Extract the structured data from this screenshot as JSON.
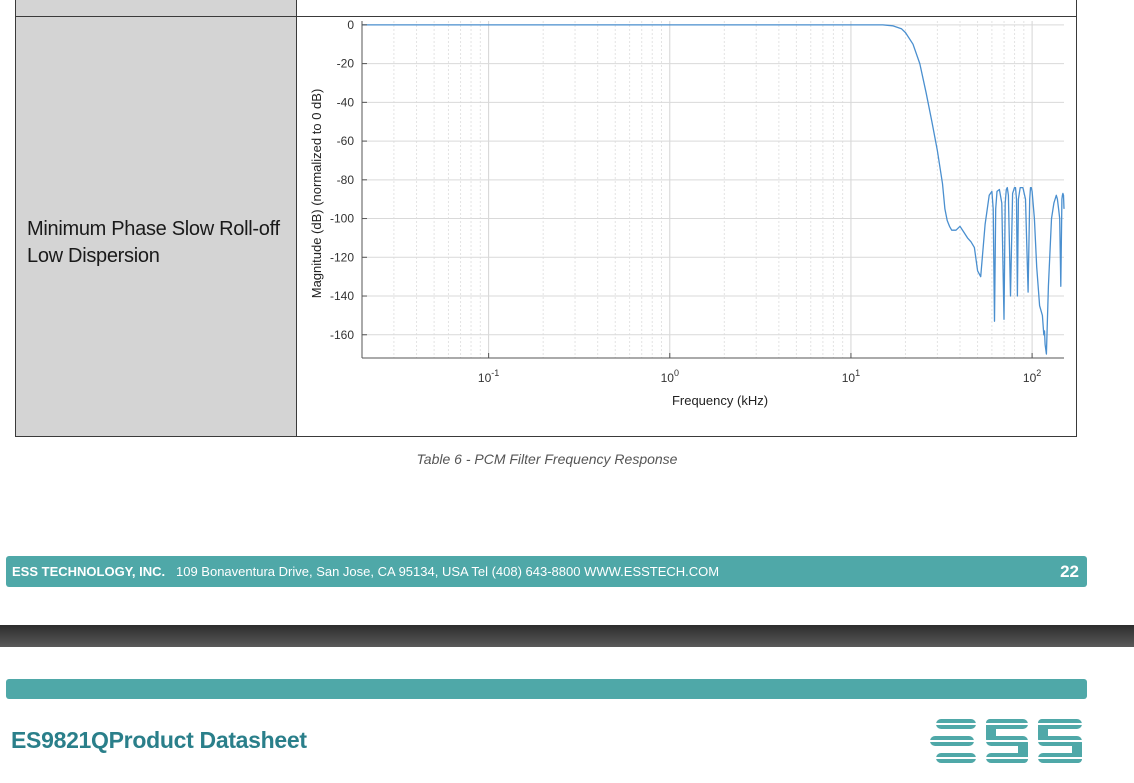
{
  "table": {
    "row_label_line1": "Minimum Phase Slow Roll-off",
    "row_label_line2": "Low Dispersion"
  },
  "chart_data": {
    "type": "line",
    "xlabel": "Frequency (kHz)",
    "ylabel": "Magnitude (dB) (normalized to 0 dB)",
    "x_scale": "log",
    "xlim": [
      0.02,
      150
    ],
    "ylim": [
      -172,
      2
    ],
    "x_ticks": [
      0.1,
      1,
      10,
      100
    ],
    "x_tick_labels": [
      {
        "base": "10",
        "exp": "-1"
      },
      {
        "base": "10",
        "exp": "0"
      },
      {
        "base": "10",
        "exp": "1"
      },
      {
        "base": "10",
        "exp": "2"
      }
    ],
    "y_ticks": [
      0,
      -20,
      -40,
      -60,
      -80,
      -100,
      -120,
      -140,
      -160
    ],
    "y_tick_labels": [
      "0",
      "-20",
      "-40",
      "-60",
      "-80",
      "-100",
      "-120",
      "-140",
      "-160"
    ],
    "grid": true,
    "color": "#4a8fcf",
    "series": [
      {
        "x": [
          0.02,
          10,
          15,
          17,
          19,
          20,
          22,
          24,
          26,
          28,
          30,
          32,
          33,
          34,
          35,
          36,
          38,
          40,
          42,
          44,
          46,
          48,
          50,
          52,
          55,
          58,
          60,
          61,
          62,
          63,
          64,
          66,
          68,
          70,
          71,
          72,
          73,
          74,
          76,
          78,
          80,
          81,
          82,
          83,
          84,
          86,
          89,
          92,
          95,
          97,
          98,
          99,
          100,
          103,
          106,
          110,
          114,
          116,
          117,
          118,
          120,
          123,
          128,
          132,
          136,
          138,
          140,
          142,
          144,
          146,
          147,
          148,
          149,
          150
        ],
        "y": [
          0,
          0,
          0,
          -0.5,
          -2,
          -4,
          -10,
          -20,
          -35,
          -50,
          -65,
          -82,
          -95,
          -101,
          -104,
          -106,
          -106,
          -104,
          -107,
          -110,
          -112,
          -115,
          -127,
          -130,
          -103,
          -88,
          -86,
          -95,
          -153,
          -95,
          -86,
          -85,
          -92,
          -152,
          -92,
          -85,
          -84,
          -88,
          -140,
          -87,
          -84,
          -84,
          -90,
          -140,
          -90,
          -84,
          -84,
          -90,
          -138,
          -90,
          -84,
          -84,
          -86,
          -100,
          -125,
          -145,
          -150,
          -160,
          -158,
          -165,
          -170,
          -135,
          -100,
          -92,
          -88,
          -90,
          -95,
          -100,
          -135,
          -90,
          -88,
          -87,
          -88,
          -95
        ]
      }
    ]
  },
  "caption": "Table 6 - PCM Filter Frequency Response",
  "footer": {
    "company": "ESS TECHNOLOGY, INC.",
    "address": "109 Bonaventura Drive, San Jose, CA 95134, USA  Tel (408) 643-8800 WWW.ESSTECH.COM",
    "page": "22"
  },
  "header": {
    "doc_title": "ES9821QProduct Datasheet",
    "logo_text": "ESS"
  },
  "colors": {
    "teal": "#4fa8a8",
    "title": "#2a7f8a",
    "cell_gray": "#d4d4d4"
  }
}
